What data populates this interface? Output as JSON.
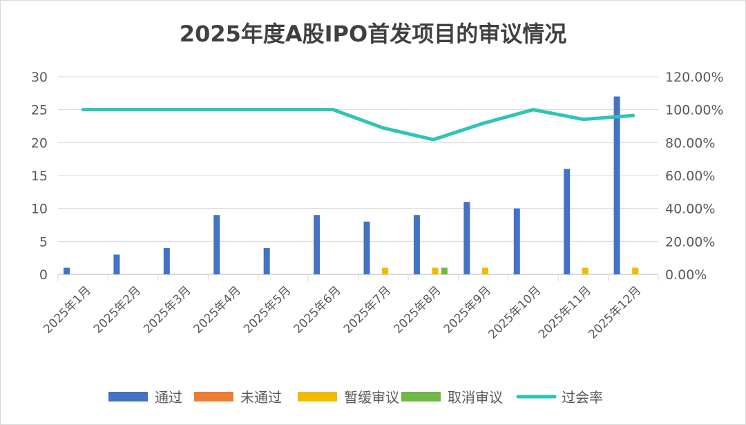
{
  "chart_data": {
    "type": "bar",
    "title": "2025年度A股IPO首发项目的审议情况",
    "categories": [
      "2025年1月",
      "2025年2月",
      "2025年3月",
      "2025年4月",
      "2025年5月",
      "2025年6月",
      "2025年7月",
      "2025年8月",
      "2025年9月",
      "2025年10月",
      "2025年11月",
      "2025年12月"
    ],
    "series": [
      {
        "name": "通过",
        "type": "bar",
        "axis": "left",
        "color": "#4472C4",
        "values": [
          1,
          3,
          4,
          9,
          4,
          9,
          8,
          9,
          11,
          10,
          16,
          27
        ]
      },
      {
        "name": "未通过",
        "type": "bar",
        "axis": "left",
        "color": "#ED7D31",
        "values": [
          0,
          0,
          0,
          0,
          0,
          0,
          0,
          0,
          0,
          0,
          0,
          0
        ]
      },
      {
        "name": "暂缓审议",
        "type": "bar",
        "axis": "left",
        "color": "#F2BA00",
        "values": [
          0,
          0,
          0,
          0,
          0,
          0,
          1,
          1,
          1,
          0,
          1,
          1
        ]
      },
      {
        "name": "取消审议",
        "type": "bar",
        "axis": "left",
        "color": "#70B844",
        "values": [
          0,
          0,
          0,
          0,
          0,
          0,
          0,
          1,
          0,
          0,
          0,
          0
        ]
      },
      {
        "name": "过会率",
        "type": "line",
        "axis": "right",
        "color": "#2EC4B6",
        "values": [
          100,
          100,
          100,
          100,
          100,
          100,
          88.89,
          81.82,
          91.67,
          100,
          94.12,
          96.43
        ]
      }
    ],
    "ylim": [
      0,
      30
    ],
    "yticks": [
      "0",
      "5",
      "10",
      "15",
      "20",
      "25",
      "30"
    ],
    "y2lim": [
      0,
      120
    ],
    "y2ticks": [
      "0.00%",
      "20.00%",
      "40.00%",
      "60.00%",
      "80.00%",
      "100.00%",
      "120.00%"
    ],
    "legend_position": "bottom",
    "grid": true
  }
}
